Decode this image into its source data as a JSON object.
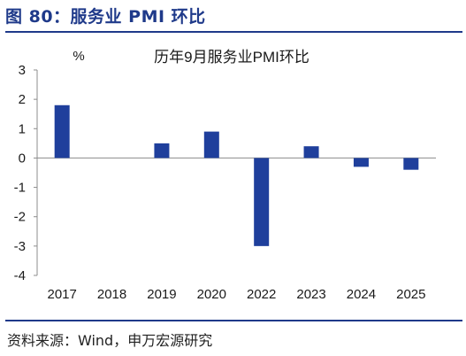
{
  "figure_title": "图 80：服务业 PMI 环比",
  "source": "资料来源：Wind，申万宏源研究",
  "chart_data": {
    "type": "bar",
    "title": "历年9月服务业PMI环比",
    "ylabel": "%",
    "xlabel": "",
    "categories": [
      "2017",
      "2018",
      "2019",
      "2020",
      "2022",
      "2023",
      "2024",
      "2025"
    ],
    "values": [
      1.8,
      0,
      0.5,
      0.9,
      -3.0,
      0.4,
      -0.3,
      -0.4
    ],
    "ylim": [
      -4,
      3
    ],
    "yticks": [
      "3",
      "2",
      "1",
      "0",
      "-1",
      "-2",
      "-3",
      "-4"
    ],
    "grid": false,
    "legend": "none",
    "bar_color": "#1f3f9c"
  }
}
